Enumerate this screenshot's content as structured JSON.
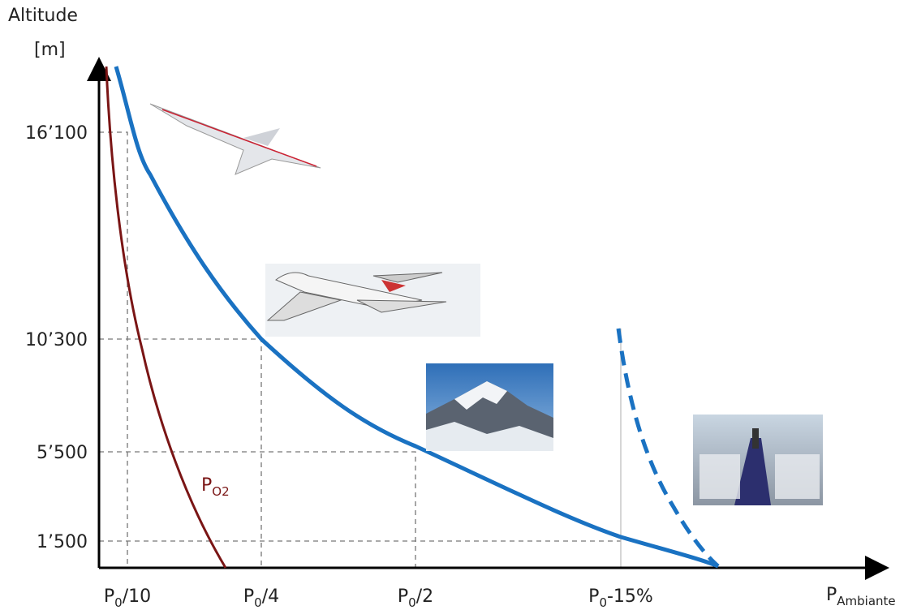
{
  "axis": {
    "y_label": [
      "Altitude",
      "[m]"
    ],
    "x_label": {
      "main": "P",
      "sub": "Ambiante"
    }
  },
  "y_ticks": [
    "16’100",
    "10’300",
    "5’500",
    "1’500"
  ],
  "x_ticks": [
    {
      "main": "P",
      "sub": "0",
      "rest": "/10"
    },
    {
      "main": "P",
      "sub": "0",
      "rest": "/4"
    },
    {
      "main": "P",
      "sub": "0",
      "rest": "/2"
    },
    {
      "main": "P",
      "sub": "0",
      "rest": "-15%"
    }
  ],
  "curve_label": {
    "main": "P",
    "sub": "O2"
  }
}
